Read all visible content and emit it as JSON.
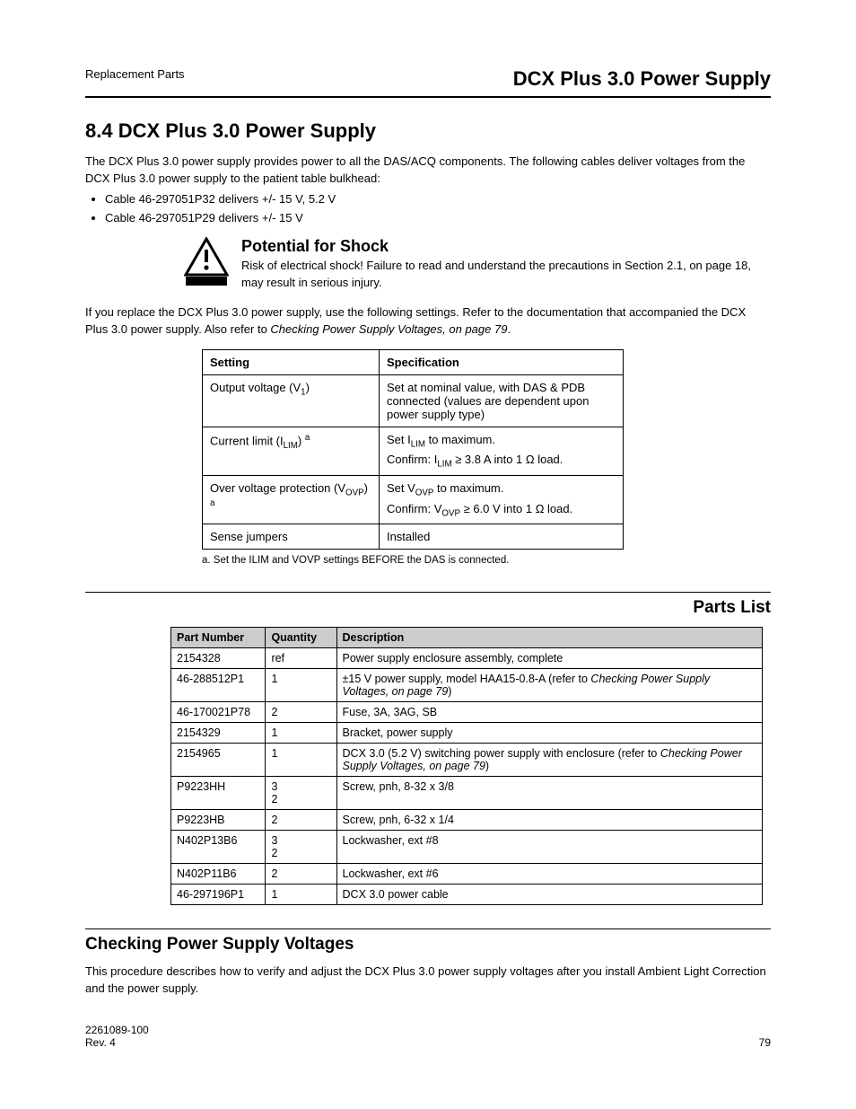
{
  "header": {
    "left": "Replacement Parts",
    "right": "DCX Plus 3.0 Power Supply"
  },
  "section_title": "8.4    DCX Plus 3.0 Power Supply",
  "intro": "The DCX Plus 3.0 power supply provides power to all the DAS/ACQ components. The following cables deliver voltages from the DCX Plus 3.0 power supply to the patient table bulkhead:",
  "bullets": [
    "Cable 46-297051P32 delivers +/- 15 V, 5.2 V",
    "Cable 46-297051P29 delivers +/- 15 V"
  ],
  "warning": {
    "heading": "Potential for Shock",
    "text": "Risk of electrical shock! Failure to read and understand the precautions in Section 2.1, on page 18, may result in serious injury."
  },
  "note": "If you replace the DCX Plus 3.0 power supply, use the following settings. Refer to the documentation that accompanied the DCX Plus 3.0 power supply. Also refer to <span class=\"link\">Checking Power Supply Voltages, on page 79</span>.",
  "kv_table": {
    "columns": [
      "Setting",
      "Specification"
    ],
    "rows": [
      [
        "Output voltage (V<span class=\"sub\">1</span>)",
        "Set at nominal value, with DAS & PDB connected (values are dependent upon power supply type)"
      ],
      [
        "Current limit (I<span class=\"sub\">LIM</span>) <span class=\"sup\">a</span>",
        "Set I<span class=\"sub\">LIM</span> to maximum.<div class=\"subline\">Confirm: I<span class=\"sub\">LIM</span> ≥ 3.8 A into 1 Ω load.</div>"
      ],
      [
        "Over voltage protection (V<span class=\"sub\">OVP</span>) <span class=\"sup\">a</span>",
        "Set V<span class=\"sub\">OVP</span> to maximum.<div class=\"subline\">Confirm: V<span class=\"sub\">OVP</span> ≥ 6.0 V into 1 Ω load.</div>"
      ],
      [
        "Sense jumpers",
        "Installed"
      ]
    ],
    "footnote": "a. Set the ILIM and VOVP settings BEFORE the DAS is connected."
  },
  "sub_title": "Parts List",
  "parts_table": {
    "columns": [
      "Part Number",
      "Quantity",
      "Description"
    ],
    "rows": [
      {
        "pn": "2154328",
        "qty": [
          "ref"
        ],
        "desc": "Power supply enclosure assembly, complete"
      },
      {
        "pn": "46-288512P1",
        "qty": [
          "1"
        ],
        "desc": "±15 V power supply, model HAA15-0.8-A (refer to <span class=\"link\">Checking Power Supply Voltages, on page 79</span>)"
      },
      {
        "pn": "46-170021P78",
        "qty": [
          "2"
        ],
        "desc": "Fuse, 3A, 3AG, SB"
      },
      {
        "pn": "2154329",
        "qty": [
          "1"
        ],
        "desc": "Bracket, power supply"
      },
      {
        "pn": "2154965",
        "qty": [
          "1"
        ],
        "desc": "DCX 3.0 (5.2 V) switching power supply with enclosure (refer to <span class=\"link\">Checking Power Supply Voltages, on page 79</span>)"
      },
      {
        "pn": "P9223HH",
        "qty": [
          "3",
          "2"
        ],
        "desc": "Screw, pnh, 8-32 x 3/8"
      },
      {
        "pn": "P9223HB",
        "qty": [
          "2"
        ],
        "desc": "Screw, pnh, 6-32 x 1/4"
      },
      {
        "pn": "N402P13B6",
        "qty": [
          "3",
          "2"
        ],
        "desc": "Lockwasher, ext #8"
      },
      {
        "pn": "N402P11B6",
        "qty": [
          "2"
        ],
        "desc": "Lockwasher, ext #6"
      },
      {
        "pn": "46-297196P1",
        "qty": [
          "1"
        ],
        "desc": "DCX 3.0 power cable"
      }
    ]
  },
  "voltage_heading": "Checking Power Supply Voltages",
  "voltage_text": "This procedure describes how to verify and adjust the DCX Plus 3.0 power supply voltages after you install Ambient Light Correction and the power supply.",
  "footer": {
    "pub": "2261089-100",
    "rev": "Rev. 4",
    "page": "79"
  }
}
